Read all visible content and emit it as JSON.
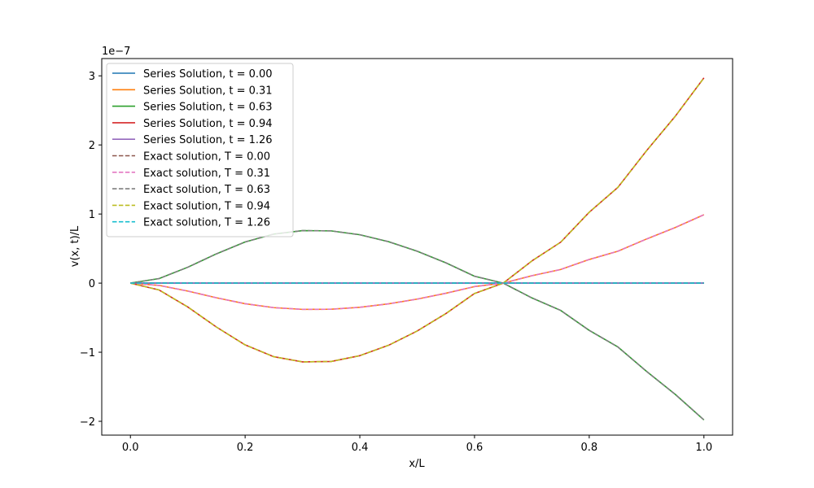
{
  "chart_data": {
    "type": "line",
    "xlabel": "x/L",
    "ylabel": "v(x, t)/L",
    "y_offset_label": "1e−7",
    "xlim": [
      -0.05,
      1.05
    ],
    "ylim": [
      -2.2,
      3.25
    ],
    "x_ticks": [
      0.0,
      0.2,
      0.4,
      0.6,
      0.8,
      1.0
    ],
    "x_tick_labels": [
      "0.0",
      "0.2",
      "0.4",
      "0.6",
      "0.8",
      "1.0"
    ],
    "y_ticks": [
      -2,
      -1,
      0,
      1,
      2,
      3
    ],
    "y_tick_labels": [
      "−2",
      "−1",
      "0",
      "1",
      "2",
      "3"
    ],
    "grid": false,
    "legend_position": "upper-left",
    "x": [
      0.0,
      0.05,
      0.1,
      0.15,
      0.2,
      0.25,
      0.3,
      0.35,
      0.4,
      0.45,
      0.5,
      0.55,
      0.6,
      0.65,
      0.7,
      0.75,
      0.8,
      0.85,
      0.9,
      0.95,
      1.0
    ],
    "series": [
      {
        "name": "Series Solution, t = 0.00",
        "color": "#1f77b4",
        "dash": "solid",
        "values": [
          0,
          0,
          0,
          0,
          0,
          0,
          0,
          0,
          0,
          0,
          0,
          0,
          0,
          0,
          0,
          0,
          0,
          0,
          0,
          0,
          0
        ]
      },
      {
        "name": "Series Solution, t = 0.31",
        "color": "#ff7f0e",
        "dash": "solid",
        "values": [
          0,
          -0.033,
          -0.115,
          -0.212,
          -0.298,
          -0.355,
          -0.38,
          -0.378,
          -0.35,
          -0.3,
          -0.231,
          -0.147,
          -0.05,
          0,
          0.107,
          0.197,
          0.342,
          0.462,
          0.639,
          0.805,
          0.99
        ]
      },
      {
        "name": "Series Solution, t = 0.63",
        "color": "#2ca02c",
        "dash": "solid",
        "values": [
          0,
          0.066,
          0.23,
          0.424,
          0.596,
          0.71,
          0.76,
          0.756,
          0.7,
          0.6,
          0.462,
          0.294,
          0.1,
          0,
          -0.214,
          -0.394,
          -0.684,
          -0.924,
          -1.278,
          -1.61,
          -1.98
        ]
      },
      {
        "name": "Series Solution, t = 0.94",
        "color": "#d62728",
        "dash": "solid",
        "values": [
          0,
          -0.099,
          -0.345,
          -0.636,
          -0.894,
          -1.065,
          -1.14,
          -1.134,
          -1.05,
          -0.9,
          -0.693,
          -0.441,
          -0.15,
          0,
          0.321,
          0.591,
          1.026,
          1.386,
          1.917,
          2.415,
          2.97
        ]
      },
      {
        "name": "Series Solution, t = 1.26",
        "color": "#9467bd",
        "dash": "solid",
        "values": [
          0,
          0,
          0,
          0,
          0,
          0,
          0,
          0,
          0,
          0,
          0,
          0,
          0,
          0,
          0,
          0,
          0,
          0,
          0,
          0,
          0
        ]
      },
      {
        "name": "Exact solution, T = 0.00",
        "color": "#8c564b",
        "dash": "dashed",
        "values": [
          0,
          0,
          0,
          0,
          0,
          0,
          0,
          0,
          0,
          0,
          0,
          0,
          0,
          0,
          0,
          0,
          0,
          0,
          0,
          0,
          0
        ]
      },
      {
        "name": "Exact solution, T = 0.31",
        "color": "#e377c2",
        "dash": "dashed",
        "values": [
          0,
          -0.033,
          -0.115,
          -0.212,
          -0.298,
          -0.355,
          -0.38,
          -0.378,
          -0.35,
          -0.3,
          -0.231,
          -0.147,
          -0.05,
          0,
          0.107,
          0.197,
          0.342,
          0.462,
          0.639,
          0.805,
          0.99
        ]
      },
      {
        "name": "Exact solution, T = 0.63",
        "color": "#7f7f7f",
        "dash": "dashed",
        "values": [
          0,
          0.066,
          0.23,
          0.424,
          0.596,
          0.71,
          0.76,
          0.756,
          0.7,
          0.6,
          0.462,
          0.294,
          0.1,
          0,
          -0.214,
          -0.394,
          -0.684,
          -0.924,
          -1.278,
          -1.61,
          -1.98
        ]
      },
      {
        "name": "Exact solution, T = 0.94",
        "color": "#bcbd22",
        "dash": "dashed",
        "values": [
          0,
          -0.099,
          -0.345,
          -0.636,
          -0.894,
          -1.065,
          -1.14,
          -1.134,
          -1.05,
          -0.9,
          -0.693,
          -0.441,
          -0.15,
          0,
          0.321,
          0.591,
          1.026,
          1.386,
          1.917,
          2.415,
          2.97
        ]
      },
      {
        "name": "Exact solution, T = 1.26",
        "color": "#17becf",
        "dash": "dashed",
        "values": [
          0,
          0,
          0,
          0,
          0,
          0,
          0,
          0,
          0,
          0,
          0,
          0,
          0,
          0,
          0,
          0,
          0,
          0,
          0,
          0,
          0
        ]
      }
    ]
  }
}
